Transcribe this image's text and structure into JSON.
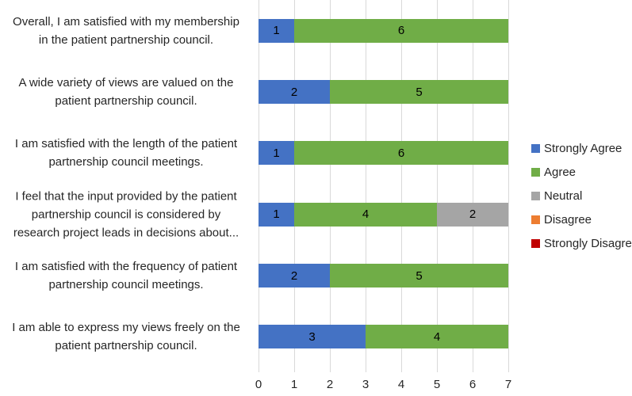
{
  "chart_data": {
    "type": "bar",
    "orientation": "horizontal",
    "stacked": true,
    "title": "",
    "xlabel": "",
    "ylabel": "",
    "xlim": [
      0,
      7
    ],
    "x_ticks": [
      "0",
      "1",
      "2",
      "3",
      "4",
      "5",
      "6",
      "7"
    ],
    "grid": true,
    "legend_position": "right",
    "show_data_labels": true,
    "categories": [
      "Overall, I am satisfied with my membership in the patient partnership council.",
      "A wide variety of views are valued on the patient partnership council.",
      "I am satisfied with the length of the patient partnership council meetings.",
      "I feel that the input provided by the patient partnership council is considered by research project leads in decisions about...",
      "I am satisfied with the frequency of patient partnership council meetings.",
      "I am able to express my views freely on the patient partnership council."
    ],
    "category_lines": [
      [
        "Overall, I am satisfied with my membership",
        "in the patient partnership council."
      ],
      [
        "A wide variety of views are valued on the",
        "patient partnership council."
      ],
      [
        "I am satisfied with the length of the patient",
        "partnership council meetings."
      ],
      [
        "I feel that the input provided by the patient",
        "partnership council is considered by",
        "research project leads in decisions about..."
      ],
      [
        "I am satisfied with the frequency of patient",
        "partnership council meetings."
      ],
      [
        "I am able to express my views freely on the",
        "patient partnership council."
      ]
    ],
    "series": [
      {
        "name": "Strongly Agree",
        "color": "#4472C4",
        "values": [
          1,
          2,
          1,
          1,
          2,
          3
        ]
      },
      {
        "name": "Agree",
        "color": "#70AD47",
        "values": [
          6,
          5,
          6,
          4,
          5,
          4
        ]
      },
      {
        "name": "Neutral",
        "color": "#A5A5A5",
        "values": [
          0,
          0,
          0,
          2,
          0,
          0
        ]
      },
      {
        "name": "Disagree",
        "color": "#ED7D31",
        "values": [
          0,
          0,
          0,
          0,
          0,
          0
        ]
      },
      {
        "name": "Strongly Disagree",
        "color": "#C00000",
        "values": [
          0,
          0,
          0,
          0,
          0,
          0
        ]
      }
    ]
  },
  "colors": {
    "background": "#FFFFFF",
    "gridline": "#D9D9D9",
    "axis_text": "#262626",
    "data_label_text": "#000000"
  }
}
